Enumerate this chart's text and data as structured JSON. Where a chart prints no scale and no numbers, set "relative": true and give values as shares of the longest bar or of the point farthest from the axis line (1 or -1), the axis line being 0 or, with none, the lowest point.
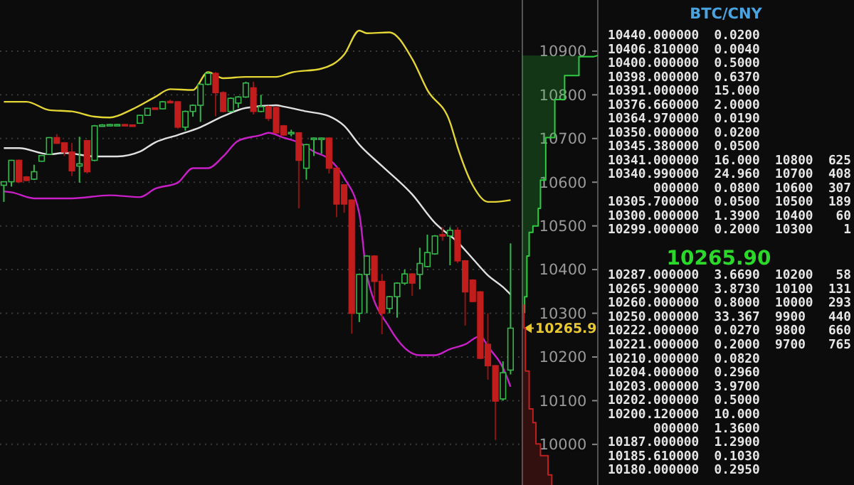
{
  "chart_data": [
    {
      "type": "candlestick",
      "categories": [
        null,
        null,
        null,
        null,
        null,
        null,
        null,
        null,
        null,
        null,
        null,
        null,
        null,
        null,
        null,
        null,
        null,
        null,
        null,
        null,
        null,
        null,
        null,
        null,
        null,
        null,
        null,
        null,
        null,
        null,
        null,
        null,
        null,
        null,
        null,
        null,
        null,
        null,
        null,
        null,
        null,
        null,
        null,
        null,
        null,
        null,
        null,
        null,
        null,
        null,
        null,
        null,
        null,
        null,
        null,
        null,
        null,
        null,
        null,
        null,
        null,
        null,
        null,
        null,
        null,
        null,
        null,
        null
      ],
      "ohlc": [
        [
          10593,
          10602,
          10555,
          10601
        ],
        [
          10601,
          10651,
          10590,
          10650
        ],
        [
          10650,
          10652,
          10598,
          10601
        ],
        [
          10612,
          10614,
          10602,
          10604
        ],
        [
          10607,
          10640,
          10605,
          10624
        ],
        [
          10648,
          10662,
          10647,
          10661
        ],
        [
          10664,
          10703,
          10663,
          10702
        ],
        [
          10702,
          10710,
          10688,
          10689
        ],
        [
          10690,
          10692,
          10660,
          10669
        ],
        [
          10669,
          10690,
          10614,
          10626
        ],
        [
          10637,
          10704,
          10599,
          10642
        ],
        [
          10695,
          10697,
          10620,
          10624
        ],
        [
          10650,
          10731,
          10648,
          10729
        ],
        [
          10729,
          10733,
          10728,
          10731
        ],
        [
          10730,
          10733,
          10729,
          10732
        ],
        [
          10731,
          10733,
          10730,
          10732
        ],
        [
          10732,
          10733,
          10729,
          10730
        ],
        [
          10731,
          10732,
          10728,
          10729
        ],
        [
          10735,
          10754,
          10734,
          10753
        ],
        [
          10753,
          10770,
          10752,
          10769
        ],
        [
          10770,
          10771,
          10767,
          10768
        ],
        [
          10768,
          10786,
          10767,
          10784
        ],
        [
          10785,
          10789,
          10782,
          10783
        ],
        [
          10784,
          10786,
          10722,
          10726
        ],
        [
          10726,
          10764,
          10718,
          10762
        ],
        [
          10762,
          10778,
          10750,
          10776
        ],
        [
          10776,
          10826,
          10738,
          10824
        ],
        [
          10824,
          10852,
          10822,
          10849
        ],
        [
          10849,
          10852,
          10751,
          10805
        ],
        [
          10805,
          10808,
          10760,
          10762
        ],
        [
          10762,
          10794,
          10760,
          10792
        ],
        [
          10781,
          10797,
          10770,
          10795
        ],
        [
          10795,
          10830,
          10793,
          10827
        ],
        [
          10816,
          10830,
          10755,
          10762
        ],
        [
          10762,
          10800,
          10760,
          10773
        ],
        [
          10773,
          10775,
          10740,
          10746
        ],
        [
          10771,
          10773,
          10712,
          10713
        ],
        [
          10729,
          10731,
          10706,
          10708
        ],
        [
          10712,
          10720,
          10705,
          10714
        ],
        [
          10713,
          10715,
          10540,
          10650
        ],
        [
          10632,
          10688,
          10606,
          10686
        ],
        [
          10699,
          10702,
          10660,
          10701
        ],
        [
          10699,
          10702,
          10665,
          10701
        ],
        [
          10701,
          10703,
          10620,
          10632
        ],
        [
          10632,
          10634,
          10520,
          10550
        ],
        [
          10594,
          10596,
          10530,
          10550
        ],
        [
          10559,
          10561,
          10253,
          10300
        ],
        [
          10300,
          10391,
          10280,
          10389
        ],
        [
          10389,
          10433,
          10300,
          10431
        ],
        [
          10431,
          10433,
          10330,
          10373
        ],
        [
          10373,
          10390,
          10252,
          10300
        ],
        [
          10311,
          10340,
          10300,
          10338
        ],
        [
          10338,
          10371,
          10290,
          10369
        ],
        [
          10369,
          10400,
          10365,
          10390
        ],
        [
          10390,
          10392,
          10340,
          10369
        ],
        [
          10389,
          10450,
          10355,
          10414
        ],
        [
          10407,
          10480,
          10405,
          10439
        ],
        [
          10436,
          10479,
          10434,
          10477
        ],
        [
          10480,
          10497,
          10466,
          10479
        ],
        [
          10477,
          10497,
          10410,
          10490
        ],
        [
          10490,
          10497,
          10415,
          10420
        ],
        [
          10420,
          10422,
          10272,
          10349
        ],
        [
          10376,
          10378,
          10325,
          10327
        ],
        [
          10349,
          10351,
          10195,
          10197
        ],
        [
          10229,
          10300,
          10148,
          10180
        ],
        [
          10180,
          10182,
          10010,
          10099
        ],
        [
          10104,
          10190,
          10100,
          10164
        ],
        [
          10170,
          10460,
          10160,
          10265.9
        ]
      ],
      "series": [
        {
          "type": "line",
          "color": "#e3d534",
          "values": [
            10784,
            null,
            null,
            10784,
            null,
            null,
            10765,
            null,
            null,
            10762,
            null,
            null,
            10750,
            null,
            10748,
            null,
            null,
            10767,
            null,
            null,
            10795,
            null,
            10813,
            null,
            null,
            10811,
            null,
            10852,
            null,
            10838,
            null,
            null,
            10841,
            null,
            null,
            null,
            10841,
            null,
            10851,
            null,
            null,
            null,
            10860,
            null,
            null,
            10892,
            null,
            10947,
            10941,
            null,
            null,
            10943,
            null,
            null,
            10882,
            null,
            10811,
            null,
            null,
            10737,
            10680,
            null,
            10593,
            null,
            10555,
            10555,
            null,
            10559
          ]
        },
        {
          "type": "line",
          "color": "#e0e0e0",
          "values": [
            10678,
            null,
            10678,
            null,
            null,
            null,
            10664,
            null,
            10667,
            null,
            null,
            null,
            10659,
            null,
            null,
            10659,
            null,
            null,
            10670,
            null,
            10691,
            null,
            null,
            10708,
            null,
            null,
            10726,
            null,
            null,
            10751,
            null,
            null,
            10770,
            null,
            null,
            null,
            10776,
            10773,
            null,
            null,
            10762,
            null,
            null,
            10751,
            null,
            10729,
            null,
            10686,
            null,
            null,
            10637,
            null,
            null,
            null,
            10572,
            null,
            null,
            10507,
            null,
            null,
            10463,
            null,
            10425,
            null,
            10387,
            null,
            10360,
            10343
          ]
        },
        {
          "type": "line",
          "color": "#c81fc8",
          "values": [
            10579,
            10577,
            null,
            null,
            10563,
            null,
            null,
            null,
            null,
            10563,
            null,
            null,
            null,
            null,
            10570,
            null,
            null,
            null,
            10566,
            null,
            10585,
            null,
            null,
            10599,
            null,
            10632,
            null,
            10632,
            null,
            10659,
            null,
            10695,
            null,
            null,
            10708,
            10713,
            null,
            10702,
            null,
            10691,
            null,
            10670,
            null,
            10653,
            null,
            10610,
            null,
            10528,
            10387,
            null,
            null,
            10267,
            null,
            null,
            null,
            10204,
            null,
            10204,
            null,
            10218,
            null,
            10229,
            null,
            10248,
            10224,
            null,
            10175,
            10132
          ]
        }
      ],
      "ylim": [
        9907,
        11017
      ],
      "yticks": [
        10000,
        10100,
        10200,
        10300,
        10400,
        10500,
        10600,
        10700,
        10800,
        10900
      ],
      "grid": "y",
      "ref_lines": [
        {
          "axis": "y",
          "value": 10265.9,
          "label": "10265.9",
          "color": "#e8c830"
        }
      ]
    },
    {
      "type": "area",
      "orientation": "horizontal",
      "relative": true,
      "ylim": [
        9907,
        11017
      ],
      "series": [
        {
          "color": "#2ecc40",
          "x": [
            10300,
            10338,
            10338,
            10431,
            10431,
            10485,
            10485,
            10500,
            10500,
            10540,
            10540,
            10605,
            10605,
            10702,
            10702,
            10789,
            10789,
            10844,
            10844,
            10887,
            10887,
            10890
          ],
          "values": [
            0.03,
            0.03,
            0.06,
            0.06,
            0.09,
            0.09,
            0.14,
            0.14,
            0.21,
            0.21,
            0.24,
            0.24,
            0.31,
            0.31,
            0.43,
            0.43,
            0.56,
            0.56,
            0.75,
            0.75,
            0.94,
            1
          ]
        },
        {
          "color": "#c0201f",
          "x": [
            10320,
            10265.9,
            10265.9,
            10168,
            10168,
            10081,
            10081,
            10050,
            10050,
            10001,
            10001,
            9974,
            9974,
            9930,
            9930,
            9907
          ],
          "values": [
            0.02,
            0.02,
            0.04,
            0.04,
            0.09,
            0.09,
            0.14,
            0.14,
            0.18,
            0.18,
            0.24,
            0.24,
            0.34,
            0.34,
            0.39,
            0.39
          ]
        }
      ]
    },
    {
      "type": "other",
      "title": "BTC/CNY",
      "subtitle": "10265.90",
      "annotations": [
        "10440.000000  0.0200",
        "10406.810000  0.0040",
        "10400.000000  0.5000",
        "10398.000000  0.6370",
        "10391.000000  15.000",
        "10376.660000  2.0000",
        "10364.970000  0.0190",
        "10350.000000  0.0200",
        "10345.380000  0.0500",
        "10341.000000  16.000  10800  625",
        "10340.990000  24.960  10700  408",
        "      000000  0.0800  10600  307",
        "10305.700000  0.0500  10500  189",
        "10300.000000  1.3900  10400   60",
        "10299.000000  0.2000  10300    1",
        "10287.000000  3.6690  10200   58",
        "10265.900000  3.8730  10100  131",
        "10260.000000  0.8000  10000  293",
        "10250.000000  33.367  9900   440",
        "10222.000000  0.0270  9800   660",
        "10221.000000  0.2000  9700   765",
        "10210.000000  0.0820",
        "10204.000000  0.2960",
        "10203.000000  3.9700",
        "10202.000000  0.5000",
        "10200.120000  10.000",
        "      000000  1.3600",
        "10187.000000  1.2900",
        "10185.610000  0.1030",
        "10180.000000  0.2950"
      ]
    }
  ]
}
